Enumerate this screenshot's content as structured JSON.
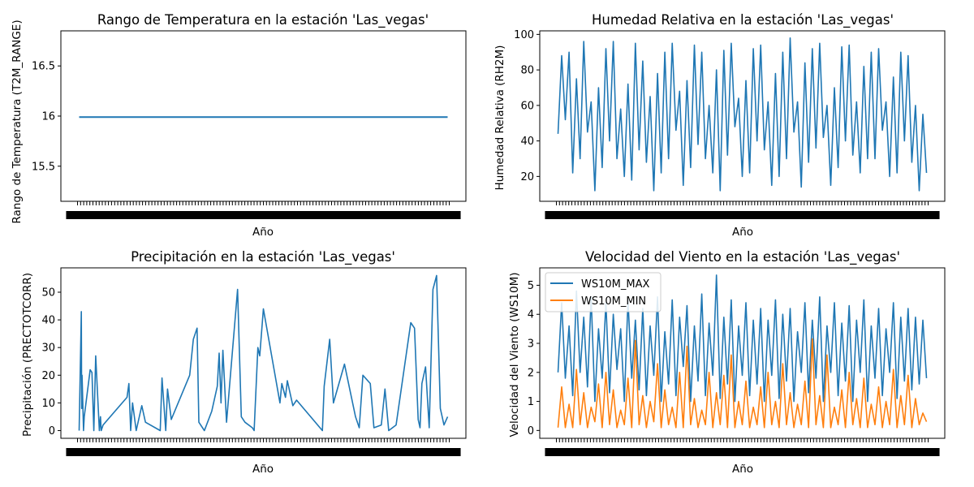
{
  "chart_data": [
    {
      "type": "line",
      "title": "Rango de Temperatura en la estación 'Las_vegas'",
      "xlabel": "Año",
      "ylabel": "Rango de Temperatura (T2M_RANGE)",
      "ylim": [
        15.15,
        16.85
      ],
      "yticks": [
        15.5,
        16.0,
        16.5
      ],
      "grid": false,
      "series": [
        {
          "color": "#1f77b4",
          "x": [
            0,
            1
          ],
          "values": [
            15.99,
            15.99
          ]
        }
      ]
    },
    {
      "type": "line",
      "title": "Humedad Relativa en la estación 'Las_vegas'",
      "xlabel": "Año",
      "ylabel": "Humedad Relativa (RH2M)",
      "ylim": [
        6,
        102
      ],
      "yticks": [
        20,
        40,
        60,
        80,
        100
      ],
      "grid": false,
      "series": [
        {
          "color": "#1f77b4",
          "x": [
            0,
            0.01,
            0.02,
            0.03,
            0.04,
            0.05,
            0.06,
            0.07,
            0.08,
            0.09,
            0.1,
            0.11,
            0.12,
            0.13,
            0.14,
            0.15,
            0.16,
            0.17,
            0.18,
            0.19,
            0.2,
            0.21,
            0.22,
            0.23,
            0.24,
            0.25,
            0.26,
            0.27,
            0.28,
            0.29,
            0.3,
            0.31,
            0.32,
            0.33,
            0.34,
            0.35,
            0.36,
            0.37,
            0.38,
            0.39,
            0.4,
            0.41,
            0.42,
            0.43,
            0.44,
            0.45,
            0.46,
            0.47,
            0.48,
            0.49,
            0.5,
            0.51,
            0.52,
            0.53,
            0.54,
            0.55,
            0.56,
            0.57,
            0.58,
            0.59,
            0.6,
            0.61,
            0.62,
            0.63,
            0.64,
            0.65,
            0.66,
            0.67,
            0.68,
            0.69,
            0.7,
            0.71,
            0.72,
            0.73,
            0.74,
            0.75,
            0.76,
            0.77,
            0.78,
            0.79,
            0.8,
            0.81,
            0.82,
            0.83,
            0.84,
            0.85,
            0.86,
            0.87,
            0.88,
            0.89,
            0.9,
            0.91,
            0.92,
            0.93,
            0.94,
            0.95,
            0.96,
            0.97,
            0.98,
            0.99,
            1
          ],
          "values": [
            44,
            88,
            52,
            90,
            22,
            75,
            30,
            96,
            45,
            62,
            12,
            70,
            25,
            92,
            40,
            96,
            30,
            58,
            20,
            72,
            18,
            95,
            35,
            85,
            28,
            65,
            12,
            78,
            22,
            90,
            30,
            95,
            46,
            68,
            15,
            74,
            25,
            94,
            38,
            90,
            30,
            60,
            22,
            80,
            12,
            91,
            32,
            95,
            48,
            64,
            20,
            74,
            22,
            92,
            40,
            94,
            35,
            62,
            15,
            78,
            20,
            90,
            30,
            98,
            45,
            62,
            14,
            84,
            28,
            92,
            36,
            95,
            42,
            60,
            15,
            70,
            25,
            93,
            40,
            94,
            32,
            62,
            22,
            82,
            30,
            90,
            30,
            92,
            46,
            62,
            20,
            76,
            22,
            90,
            40,
            88,
            28,
            60,
            12,
            55,
            22
          ]
        }
      ]
    },
    {
      "type": "line",
      "title": "Precipitación en la estación 'Las_vegas'",
      "xlabel": "Año",
      "ylabel": "Precipitación (PRECTOTCORR)",
      "ylim": [
        -2.8,
        58.8
      ],
      "yticks": [
        0,
        10,
        20,
        30,
        40,
        50
      ],
      "grid": false,
      "series": [
        {
          "color": "#1f77b4",
          "x": [
            0,
            0.006,
            0.007,
            0.008,
            0.012,
            0.014,
            0.03,
            0.035,
            0.04,
            0.045,
            0.055,
            0.058,
            0.06,
            0.065,
            0.13,
            0.135,
            0.14,
            0.145,
            0.155,
            0.17,
            0.18,
            0.22,
            0.225,
            0.235,
            0.24,
            0.25,
            0.3,
            0.31,
            0.32,
            0.325,
            0.34,
            0.36,
            0.375,
            0.38,
            0.385,
            0.39,
            0.4,
            0.43,
            0.44,
            0.45,
            0.47,
            0.475,
            0.485,
            0.49,
            0.5,
            0.545,
            0.55,
            0.56,
            0.565,
            0.58,
            0.59,
            0.66,
            0.665,
            0.68,
            0.69,
            0.72,
            0.75,
            0.76,
            0.77,
            0.79,
            0.8,
            0.82,
            0.83,
            0.84,
            0.86,
            0.9,
            0.91,
            0.92,
            0.925,
            0.93,
            0.94,
            0.95,
            0.96,
            0.97,
            0.98,
            0.99,
            1
          ],
          "values": [
            0,
            43,
            8,
            20,
            0,
            5,
            22,
            21,
            0,
            27,
            0,
            5,
            0,
            2,
            12,
            17,
            0,
            10,
            0,
            9,
            3,
            0,
            19,
            0,
            15,
            4,
            20,
            33,
            37,
            3,
            0,
            7,
            16,
            28,
            10,
            29,
            3,
            51,
            5,
            3,
            1,
            0,
            30,
            27,
            44,
            10,
            17,
            12,
            18,
            9,
            11,
            0,
            16,
            33,
            10,
            24,
            5,
            1,
            20,
            17,
            1,
            2,
            15,
            0,
            2,
            39,
            37,
            4,
            1,
            17,
            23,
            1,
            51,
            56,
            8,
            2,
            5
          ]
        }
      ]
    },
    {
      "type": "line",
      "title": "Velocidad del Viento en la estación 'Las_vegas'",
      "xlabel": "Año",
      "ylabel": "Velocidad del Viento (WS10M)",
      "ylim": [
        -0.27,
        5.6
      ],
      "yticks": [
        0,
        1,
        2,
        3,
        4,
        5
      ],
      "grid": false,
      "legend": "top-left",
      "series": [
        {
          "name": "WS10M_MAX",
          "color": "#1f77b4",
          "x": [
            0,
            0.01,
            0.02,
            0.03,
            0.04,
            0.05,
            0.06,
            0.07,
            0.08,
            0.09,
            0.1,
            0.11,
            0.12,
            0.13,
            0.14,
            0.15,
            0.16,
            0.17,
            0.18,
            0.19,
            0.2,
            0.21,
            0.22,
            0.23,
            0.24,
            0.25,
            0.26,
            0.27,
            0.28,
            0.29,
            0.3,
            0.31,
            0.32,
            0.33,
            0.34,
            0.35,
            0.36,
            0.37,
            0.38,
            0.39,
            0.4,
            0.41,
            0.42,
            0.43,
            0.44,
            0.45,
            0.46,
            0.47,
            0.48,
            0.49,
            0.5,
            0.51,
            0.52,
            0.53,
            0.54,
            0.55,
            0.56,
            0.57,
            0.58,
            0.59,
            0.6,
            0.61,
            0.62,
            0.63,
            0.64,
            0.65,
            0.66,
            0.67,
            0.68,
            0.69,
            0.7,
            0.71,
            0.72,
            0.73,
            0.74,
            0.75,
            0.76,
            0.77,
            0.78,
            0.79,
            0.8,
            0.81,
            0.82,
            0.83,
            0.84,
            0.85,
            0.86,
            0.87,
            0.88,
            0.89,
            0.9,
            0.91,
            0.92,
            0.93,
            0.94,
            0.95,
            0.96,
            0.97,
            0.98,
            0.99,
            1
          ],
          "values": [
            2.0,
            4.4,
            1.8,
            3.6,
            1.2,
            4.8,
            2.0,
            3.9,
            1.5,
            4.6,
            1.0,
            3.5,
            1.8,
            4.4,
            1.3,
            4.0,
            2.1,
            3.5,
            1.0,
            4.5,
            1.8,
            3.8,
            1.4,
            4.2,
            1.2,
            3.6,
            1.9,
            4.6,
            1.0,
            3.4,
            1.6,
            4.5,
            1.2,
            3.9,
            2.2,
            4.3,
            1.0,
            3.6,
            1.7,
            4.7,
            1.2,
            3.7,
            1.9,
            5.35,
            1.1,
            3.9,
            1.6,
            4.5,
            1.0,
            3.6,
            1.9,
            4.4,
            1.2,
            3.8,
            1.6,
            4.2,
            1.0,
            3.8,
            1.9,
            4.5,
            1.1,
            4.0,
            1.7,
            4.2,
            1.0,
            3.4,
            2.0,
            4.4,
            1.3,
            3.8,
            1.8,
            4.6,
            1.0,
            3.6,
            2.0,
            4.4,
            1.2,
            3.7,
            1.7,
            4.3,
            1.0,
            3.8,
            2.0,
            4.5,
            1.0,
            3.6,
            1.8,
            4.2,
            1.2,
            3.5,
            2.0,
            4.4,
            1.1,
            3.9,
            1.7,
            4.2,
            1.4,
            3.9,
            1.6,
            3.8,
            1.8
          ]
        },
        {
          "name": "WS10M_MIN",
          "color": "#ff7f0e",
          "x": [
            0,
            0.01,
            0.02,
            0.03,
            0.04,
            0.05,
            0.06,
            0.07,
            0.08,
            0.09,
            0.1,
            0.11,
            0.12,
            0.13,
            0.14,
            0.15,
            0.16,
            0.17,
            0.18,
            0.19,
            0.2,
            0.21,
            0.22,
            0.23,
            0.24,
            0.25,
            0.26,
            0.27,
            0.28,
            0.29,
            0.3,
            0.31,
            0.32,
            0.33,
            0.34,
            0.35,
            0.36,
            0.37,
            0.38,
            0.39,
            0.4,
            0.41,
            0.42,
            0.43,
            0.44,
            0.45,
            0.46,
            0.47,
            0.48,
            0.49,
            0.5,
            0.51,
            0.52,
            0.53,
            0.54,
            0.55,
            0.56,
            0.57,
            0.58,
            0.59,
            0.6,
            0.61,
            0.62,
            0.63,
            0.64,
            0.65,
            0.66,
            0.67,
            0.68,
            0.69,
            0.7,
            0.71,
            0.72,
            0.73,
            0.74,
            0.75,
            0.76,
            0.77,
            0.78,
            0.79,
            0.8,
            0.81,
            0.82,
            0.83,
            0.84,
            0.85,
            0.86,
            0.87,
            0.88,
            0.89,
            0.9,
            0.91,
            0.92,
            0.93,
            0.94,
            0.95,
            0.96,
            0.97,
            0.98,
            0.99,
            1
          ],
          "values": [
            0.1,
            1.5,
            0.1,
            0.9,
            0.1,
            2.1,
            0.2,
            1.3,
            0.1,
            0.8,
            0.3,
            1.6,
            0.1,
            2.0,
            0.2,
            1.4,
            0.1,
            0.7,
            0.2,
            1.8,
            0.1,
            3.1,
            0.2,
            1.2,
            0.1,
            1.0,
            0.3,
            2.3,
            0.1,
            1.4,
            0.2,
            0.8,
            0.1,
            2.0,
            0.1,
            2.9,
            0.2,
            1.1,
            0.1,
            0.7,
            0.2,
            2.0,
            0.1,
            1.3,
            0.2,
            1.9,
            0.1,
            2.6,
            0.1,
            1.0,
            0.2,
            1.7,
            0.1,
            0.8,
            0.2,
            1.5,
            0.1,
            2.0,
            0.2,
            1.0,
            0.1,
            2.3,
            0.2,
            1.3,
            0.1,
            0.9,
            0.2,
            1.7,
            0.1,
            3.15,
            0.2,
            1.2,
            0.1,
            2.6,
            0.1,
            0.8,
            0.2,
            1.4,
            0.1,
            2.0,
            0.2,
            1.1,
            0.1,
            1.8,
            0.1,
            0.9,
            0.2,
            1.5,
            0.1,
            1.0,
            0.2,
            2.1,
            0.1,
            1.2,
            0.2,
            1.9,
            0.1,
            1.1,
            0.2,
            0.6,
            0.3
          ]
        }
      ]
    }
  ]
}
